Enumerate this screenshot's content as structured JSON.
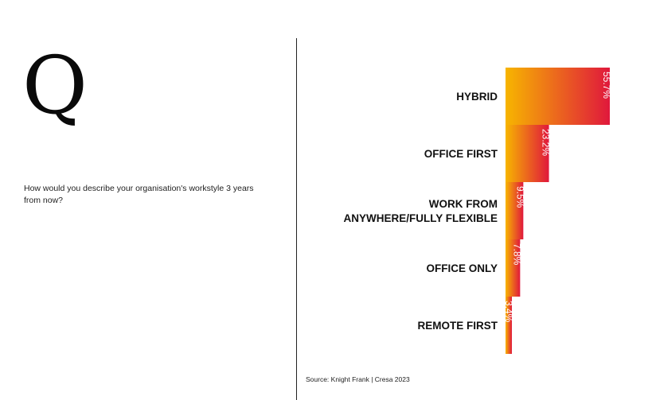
{
  "question_glyph": "Q",
  "question_text": "How would you describe your organisation's workstyle 3 years from now?",
  "source": "Source: Knight Frank | Cresa 2023",
  "colors": {
    "bar_start": "#F7B500",
    "bar_end": "#E0183C"
  },
  "chart_data": {
    "type": "bar",
    "orientation": "horizontal",
    "unit": "%",
    "categories": [
      [
        "HYBRID"
      ],
      [
        "OFFICE FIRST"
      ],
      [
        "WORK FROM",
        "ANYWHERE/FULLY  FLEXIBLE"
      ],
      [
        "OFFICE ONLY"
      ],
      [
        "REMOTE FIRST"
      ]
    ],
    "values": [
      55.7,
      23.2,
      9.5,
      7.8,
      3.4
    ],
    "value_labels": [
      "55.7%",
      "23.2%",
      "9.5%",
      "7.8%",
      "3.4%"
    ]
  }
}
